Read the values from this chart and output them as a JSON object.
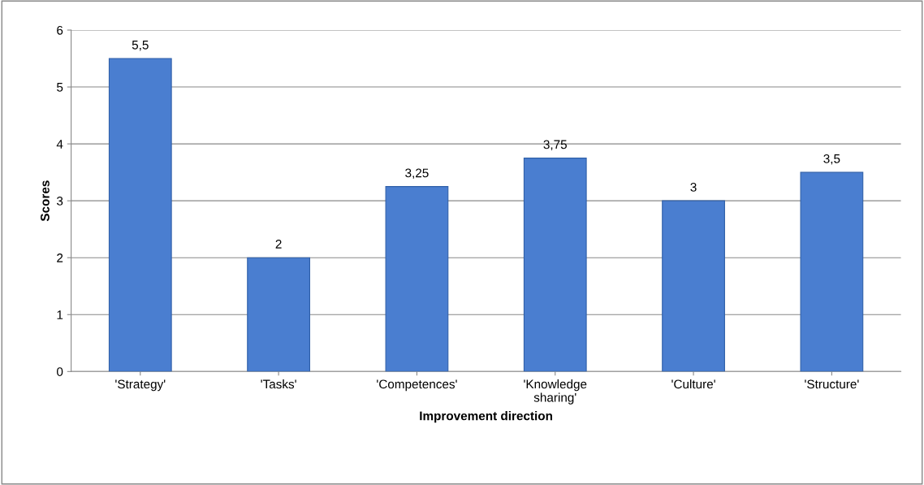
{
  "chart_data": {
    "type": "bar",
    "categories": [
      "'Strategy'",
      "'Tasks'",
      "'Competences'",
      "'Knowledge\nsharing'",
      "'Culture'",
      "'Structure'"
    ],
    "values": [
      5.5,
      2,
      3.25,
      3.75,
      3,
      3.5
    ],
    "value_labels": [
      "5,5",
      "2",
      "3,25",
      "3,75",
      "3",
      "3,5"
    ],
    "color": "#4a7ed0",
    "xlabel": "Improvement direction",
    "ylabel": "Scores",
    "ylim": [
      0,
      6
    ],
    "yticks": [
      0,
      1,
      2,
      3,
      4,
      5,
      6
    ],
    "grid": "y",
    "legend": false
  }
}
